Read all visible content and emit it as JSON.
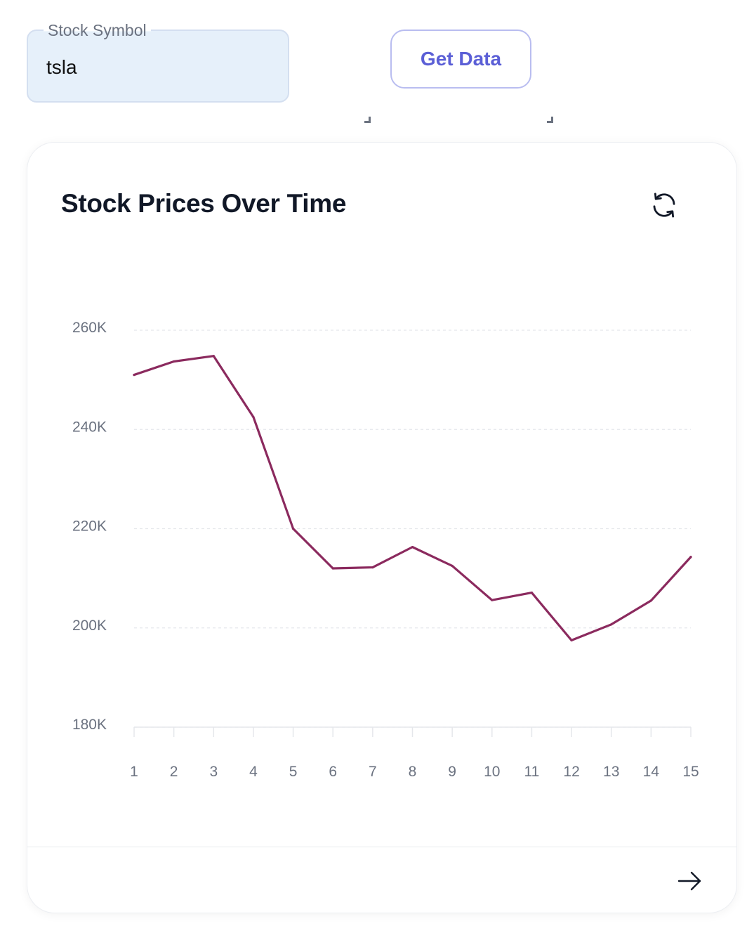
{
  "form": {
    "symbol_label": "Stock Symbol",
    "symbol_value": "tsla",
    "get_data_label": "Get Data"
  },
  "card": {
    "title": "Stock Prices Over Time",
    "refresh_icon": "refresh-icon",
    "next_icon": "arrow-right-icon"
  },
  "colors": {
    "line": "#8b2a5e",
    "accent": "#5b5fd6",
    "input_bg": "#e6f0fa"
  },
  "chart_data": {
    "type": "line",
    "x": [
      1,
      2,
      3,
      4,
      5,
      6,
      7,
      8,
      9,
      10,
      11,
      12,
      13,
      14,
      15
    ],
    "y_tick_labels": [
      "180K",
      "200K",
      "220K",
      "240K",
      "260K"
    ],
    "y_ticks": [
      180000,
      200000,
      220000,
      240000,
      260000
    ],
    "ylim": [
      180000,
      260000
    ],
    "grid": true,
    "series": [
      {
        "values": [
          251000,
          253700,
          254800,
          242500,
          220000,
          212000,
          212200,
          216300,
          212500,
          205600,
          207100,
          197500,
          200700,
          205500,
          214300
        ]
      }
    ]
  }
}
